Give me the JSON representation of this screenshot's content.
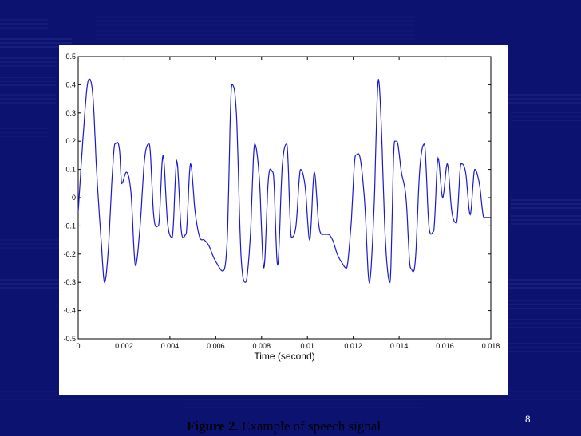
{
  "slide": {
    "page_number": "8",
    "colors": {
      "background": "#0c1270",
      "stripe": "#5a68c8",
      "panel": "#ffffff"
    }
  },
  "caption": {
    "prefix": "Figure 2",
    "text": ". Example of speech signal"
  },
  "chart_data": {
    "type": "line",
    "title": "",
    "xlabel": "Time (second)",
    "ylabel": "",
    "xlim": [
      0,
      0.018
    ],
    "ylim": [
      -0.5,
      0.5
    ],
    "x_ticks": [
      "0",
      "0.002",
      "0.004",
      "0.006",
      "0.008",
      "0.01",
      "0.012",
      "0.014",
      "0.016",
      "0.018"
    ],
    "y_ticks": [
      "-0.5",
      "-0.4",
      "-0.3",
      "-0.2",
      "-0.1",
      "0",
      "0.1",
      "0.2",
      "0.3",
      "0.4",
      "0.5"
    ],
    "grid": false,
    "line_color": "#1a1acc",
    "series": [
      {
        "x": [
          0,
          0.0002,
          0.0004,
          0.0005,
          0.00065,
          0.0008,
          0.001,
          0.00115,
          0.0013,
          0.0015,
          0.0016,
          0.0018,
          0.0019,
          0.0021,
          0.0023,
          0.0025,
          0.0027,
          0.0029,
          0.0031,
          0.0033,
          0.0035,
          0.0037,
          0.0039,
          0.0041,
          0.0043,
          0.0045,
          0.0047,
          0.0049,
          0.0051,
          0.0053,
          0.0055,
          0.0057,
          0.0059,
          0.0061,
          0.0063,
          0.0065,
          0.0067,
          0.0069,
          0.0071,
          0.0073,
          0.0075,
          0.0077,
          0.0079,
          0.0081,
          0.0083,
          0.0085,
          0.0087,
          0.0089,
          0.0091,
          0.0093,
          0.0095,
          0.0097,
          0.0099,
          0.0101,
          0.0103,
          0.0105,
          0.0107,
          0.0109,
          0.0111,
          0.0113,
          0.0115,
          0.0117,
          0.0119,
          0.0121,
          0.0123,
          0.0125,
          0.0127,
          0.0129,
          0.0131,
          0.0132,
          0.0134,
          0.0136,
          0.0138,
          0.0139,
          0.0141,
          0.0143,
          0.0145,
          0.0147,
          0.0149,
          0.0151,
          0.0153,
          0.0155,
          0.0157,
          0.0159,
          0.0161,
          0.0163,
          0.0165,
          0.0167,
          0.0169,
          0.0171,
          0.0173,
          0.0175,
          0.0177,
          0.018
        ],
        "y": [
          -0.05,
          0.2,
          0.4,
          0.42,
          0.35,
          0.1,
          -0.15,
          -0.3,
          -0.2,
          0.1,
          0.19,
          0.17,
          0.05,
          0.09,
          0.02,
          -0.24,
          -0.1,
          0.14,
          0.19,
          -0.07,
          -0.1,
          0.15,
          -0.09,
          -0.14,
          0.13,
          -0.12,
          -0.13,
          0.12,
          -0.05,
          -0.14,
          -0.15,
          -0.17,
          -0.21,
          -0.24,
          -0.26,
          -0.15,
          0.4,
          0.3,
          -0.2,
          -0.3,
          -0.15,
          0.19,
          0.07,
          -0.25,
          0.07,
          0.09,
          -0.24,
          0.11,
          0.19,
          -0.14,
          -0.1,
          0.1,
          0.04,
          -0.15,
          0.09,
          -0.1,
          -0.13,
          -0.13,
          -0.15,
          -0.2,
          -0.23,
          -0.25,
          -0.1,
          0.15,
          0.14,
          -0.02,
          -0.3,
          -0.05,
          0.42,
          0.3,
          -0.15,
          -0.3,
          0.2,
          0.2,
          0.09,
          0.0,
          -0.25,
          -0.23,
          0.1,
          0.19,
          -0.1,
          -0.12,
          0.14,
          0.0,
          0.12,
          -0.05,
          -0.09,
          0.12,
          0.09,
          -0.06,
          0.1,
          0.05,
          -0.07,
          -0.07
        ]
      }
    ]
  }
}
